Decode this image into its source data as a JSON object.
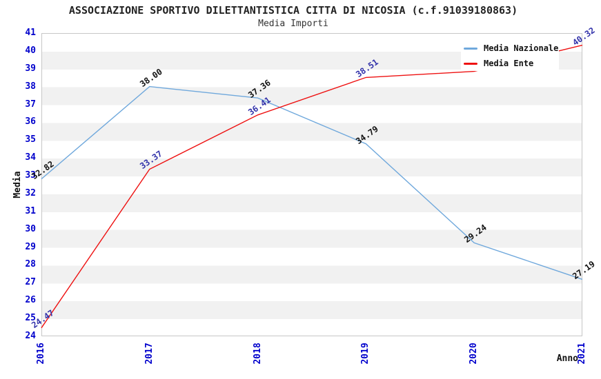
{
  "header": {
    "title": "ASSOCIAZIONE SPORTIVO DILETTANTISTICA CITTA DI NICOSIA (c.f.91039180863)",
    "subtitle": "Media Importi"
  },
  "chart_data": {
    "type": "line",
    "x": [
      "2016",
      "2017",
      "2018",
      "2019",
      "2020",
      "2021"
    ],
    "xlabel": "Anno",
    "ylabel": "Media",
    "ylim": [
      24,
      41
    ],
    "y_tick_step": 1,
    "grid_bands": true,
    "legend_position": "top-right",
    "legend_entries": [
      "Media Nazionale",
      "Media Ente"
    ],
    "series": [
      {
        "name": "Media Nazionale",
        "color": "#6FA8DC",
        "label_color": "#111111",
        "values": [
          32.82,
          38.0,
          37.36,
          34.79,
          29.24,
          27.19
        ],
        "point_labels": [
          "32.82",
          "38.00",
          "37.36",
          "34.79",
          "29.24",
          "27.19"
        ]
      },
      {
        "name": "Media Ente",
        "color": "#EE1111",
        "label_color": "#3333AA",
        "values": [
          24.47,
          33.37,
          36.41,
          38.51,
          38.85,
          40.32
        ],
        "point_labels": [
          "24.47",
          "33.37",
          "36.41",
          "38.51",
          null,
          "40.32"
        ]
      }
    ]
  },
  "colors": {
    "axis_tick": "#0000CC",
    "band": "#F1F1F1",
    "plot_border": "#C6C6C6",
    "title": "#222222"
  }
}
